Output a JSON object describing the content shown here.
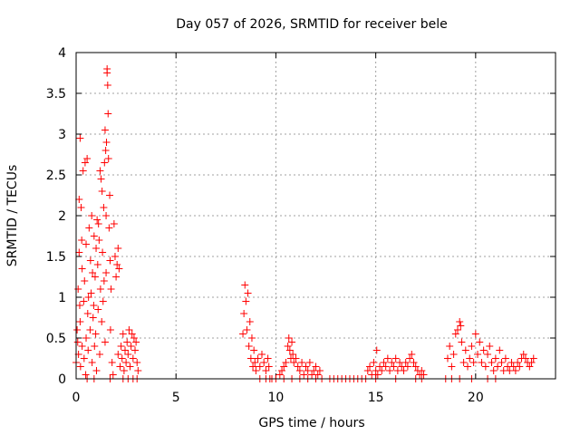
{
  "chart_data": {
    "type": "scatter",
    "title": "Day 057 of 2026, SRMTID for receiver bele",
    "xlabel": "GPS time / hours",
    "ylabel": "SRMTID / TECUs",
    "xlim": [
      0,
      24
    ],
    "ylim": [
      0,
      4
    ],
    "xticks": [
      0,
      5,
      10,
      15,
      20
    ],
    "xtick_labels": [
      "0",
      "5",
      "10",
      "15",
      "20"
    ],
    "yticks": [
      0,
      0.5,
      1,
      1.5,
      2,
      2.5,
      3,
      3.5,
      4
    ],
    "ytick_labels": [
      "0",
      "0.5",
      "1",
      "1.5",
      "2",
      "2.5",
      "3",
      "3.5",
      "4"
    ],
    "grid": true,
    "marker": "+",
    "color": "#ff0000",
    "series": [
      {
        "name": "bele",
        "points": [
          [
            0.0,
            0.2
          ],
          [
            0.05,
            0.6
          ],
          [
            0.08,
            0.45
          ],
          [
            0.1,
            1.1
          ],
          [
            0.12,
            0.3
          ],
          [
            0.15,
            2.2
          ],
          [
            0.15,
            1.55
          ],
          [
            0.18,
            0.9
          ],
          [
            0.2,
            0.7
          ],
          [
            0.2,
            2.95
          ],
          [
            0.22,
            0.15
          ],
          [
            0.25,
            2.1
          ],
          [
            0.28,
            1.7
          ],
          [
            0.3,
            1.35
          ],
          [
            0.3,
            0.4
          ],
          [
            0.35,
            2.55
          ],
          [
            0.38,
            0.95
          ],
          [
            0.4,
            0.25
          ],
          [
            0.42,
            1.2
          ],
          [
            0.45,
            2.65
          ],
          [
            0.48,
            0.05
          ],
          [
            0.5,
            1.65
          ],
          [
            0.5,
            0.5
          ],
          [
            0.55,
            2.7
          ],
          [
            0.58,
            0.8
          ],
          [
            0.6,
            0.35
          ],
          [
            0.62,
            1.0
          ],
          [
            0.65,
            1.85
          ],
          [
            0.7,
            0.6
          ],
          [
            0.72,
            1.45
          ],
          [
            0.75,
            1.05
          ],
          [
            0.78,
            2.0
          ],
          [
            0.8,
            0.2
          ],
          [
            0.82,
            1.3
          ],
          [
            0.85,
            0.75
          ],
          [
            0.88,
            0.9
          ],
          [
            0.9,
            1.75
          ],
          [
            0.92,
            0.4
          ],
          [
            0.95,
            1.25
          ],
          [
            0.98,
            0.55
          ],
          [
            1.0,
            1.6
          ],
          [
            1.02,
            0.1
          ],
          [
            1.05,
            1.95
          ],
          [
            1.08,
            1.4
          ],
          [
            1.1,
            0.85
          ],
          [
            1.12,
            1.9
          ],
          [
            1.15,
            1.7
          ],
          [
            1.18,
            0.3
          ],
          [
            1.2,
            2.55
          ],
          [
            1.22,
            1.1
          ],
          [
            1.25,
            2.45
          ],
          [
            1.28,
            0.7
          ],
          [
            1.3,
            2.3
          ],
          [
            1.32,
            1.55
          ],
          [
            1.35,
            0.95
          ],
          [
            1.38,
            2.1
          ],
          [
            1.4,
            1.2
          ],
          [
            1.42,
            2.65
          ],
          [
            1.45,
            3.05
          ],
          [
            1.45,
            0.45
          ],
          [
            1.48,
            2.8
          ],
          [
            1.5,
            2.0
          ],
          [
            1.5,
            1.3
          ],
          [
            1.52,
            2.9
          ],
          [
            1.55,
            3.8
          ],
          [
            1.55,
            3.75
          ],
          [
            1.58,
            3.6
          ],
          [
            1.6,
            3.25
          ],
          [
            1.62,
            2.7
          ],
          [
            1.65,
            1.85
          ],
          [
            1.68,
            2.25
          ],
          [
            1.7,
            1.45
          ],
          [
            1.72,
            0.6
          ],
          [
            1.75,
            1.1
          ],
          [
            1.8,
            0.2
          ],
          [
            1.85,
            0.05
          ],
          [
            1.9,
            1.9
          ],
          [
            1.95,
            1.5
          ],
          [
            2.0,
            1.25
          ],
          [
            2.05,
            1.4
          ],
          [
            2.1,
            1.6
          ],
          [
            2.15,
            1.35
          ],
          [
            2.1,
            0.3
          ],
          [
            2.2,
            0.15
          ],
          [
            2.25,
            0.4
          ],
          [
            2.3,
            0.25
          ],
          [
            2.35,
            0.55
          ],
          [
            2.4,
            0.1
          ],
          [
            2.45,
            0.35
          ],
          [
            2.5,
            0.2
          ],
          [
            2.55,
            0.45
          ],
          [
            2.6,
            0.3
          ],
          [
            2.65,
            0.6
          ],
          [
            2.7,
            0.15
          ],
          [
            2.75,
            0.4
          ],
          [
            2.8,
            0.55
          ],
          [
            2.85,
            0.25
          ],
          [
            2.9,
            0.5
          ],
          [
            2.95,
            0.35
          ],
          [
            3.0,
            0.45
          ],
          [
            3.05,
            0.2
          ],
          [
            3.1,
            0.1
          ],
          [
            2.35,
            0.0
          ],
          [
            2.6,
            0.0
          ],
          [
            2.85,
            0.0
          ],
          [
            3.05,
            0.0
          ],
          [
            0.55,
            0.0
          ],
          [
            0.9,
            0.0
          ],
          [
            1.7,
            0.0
          ],
          [
            8.35,
            0.55
          ],
          [
            8.4,
            0.8
          ],
          [
            8.45,
            1.15
          ],
          [
            8.5,
            0.95
          ],
          [
            8.55,
            0.6
          ],
          [
            8.6,
            1.05
          ],
          [
            8.65,
            0.4
          ],
          [
            8.7,
            0.7
          ],
          [
            8.75,
            0.25
          ],
          [
            8.8,
            0.5
          ],
          [
            8.85,
            0.15
          ],
          [
            8.9,
            0.35
          ],
          [
            8.95,
            0.2
          ],
          [
            9.0,
            0.1
          ],
          [
            9.1,
            0.25
          ],
          [
            9.2,
            0.15
          ],
          [
            9.3,
            0.3
          ],
          [
            9.4,
            0.2
          ],
          [
            9.5,
            0.1
          ],
          [
            9.6,
            0.25
          ],
          [
            9.65,
            0.15
          ],
          [
            9.2,
            0.0
          ],
          [
            9.5,
            0.0
          ],
          [
            9.7,
            0.0
          ],
          [
            9.8,
            0.0
          ],
          [
            10.0,
            0.0
          ],
          [
            10.2,
            0.05
          ],
          [
            10.3,
            0.1
          ],
          [
            10.4,
            0.15
          ],
          [
            10.5,
            0.2
          ],
          [
            10.6,
            0.4
          ],
          [
            10.65,
            0.5
          ],
          [
            10.7,
            0.35
          ],
          [
            10.75,
            0.25
          ],
          [
            10.8,
            0.45
          ],
          [
            10.85,
            0.3
          ],
          [
            10.9,
            0.2
          ],
          [
            11.0,
            0.25
          ],
          [
            11.1,
            0.15
          ],
          [
            11.2,
            0.1
          ],
          [
            11.3,
            0.2
          ],
          [
            11.4,
            0.05
          ],
          [
            11.5,
            0.15
          ],
          [
            11.6,
            0.1
          ],
          [
            11.7,
            0.2
          ],
          [
            11.8,
            0.05
          ],
          [
            11.9,
            0.1
          ],
          [
            12.0,
            0.15
          ],
          [
            12.1,
            0.05
          ],
          [
            12.2,
            0.1
          ],
          [
            12.3,
            0.0
          ],
          [
            10.4,
            0.0
          ],
          [
            10.8,
            0.0
          ],
          [
            11.2,
            0.0
          ],
          [
            11.6,
            0.0
          ],
          [
            12.0,
            0.0
          ],
          [
            12.7,
            0.0
          ],
          [
            12.9,
            0.0
          ],
          [
            13.1,
            0.0
          ],
          [
            13.3,
            0.0
          ],
          [
            13.5,
            0.0
          ],
          [
            13.7,
            0.0
          ],
          [
            13.9,
            0.0
          ],
          [
            14.1,
            0.0
          ],
          [
            14.3,
            0.0
          ],
          [
            14.5,
            0.0
          ],
          [
            14.6,
            0.1
          ],
          [
            14.7,
            0.15
          ],
          [
            14.8,
            0.05
          ],
          [
            14.9,
            0.2
          ],
          [
            15.0,
            0.1
          ],
          [
            15.05,
            0.35
          ],
          [
            15.1,
            0.05
          ],
          [
            15.2,
            0.15
          ],
          [
            15.3,
            0.1
          ],
          [
            15.4,
            0.2
          ],
          [
            15.5,
            0.15
          ],
          [
            15.6,
            0.25
          ],
          [
            15.7,
            0.1
          ],
          [
            15.8,
            0.2
          ],
          [
            15.9,
            0.15
          ],
          [
            16.0,
            0.25
          ],
          [
            16.1,
            0.1
          ],
          [
            16.2,
            0.2
          ],
          [
            16.3,
            0.15
          ],
          [
            16.4,
            0.1
          ],
          [
            16.5,
            0.2
          ],
          [
            16.6,
            0.15
          ],
          [
            16.7,
            0.25
          ],
          [
            16.8,
            0.3
          ],
          [
            16.9,
            0.2
          ],
          [
            17.0,
            0.15
          ],
          [
            17.1,
            0.1
          ],
          [
            17.2,
            0.05
          ],
          [
            17.3,
            0.1
          ],
          [
            17.4,
            0.05
          ],
          [
            15.0,
            0.0
          ],
          [
            16.0,
            0.0
          ],
          [
            17.0,
            0.0
          ],
          [
            17.3,
            0.0
          ],
          [
            18.5,
            0.0
          ],
          [
            18.6,
            0.25
          ],
          [
            18.7,
            0.4
          ],
          [
            18.8,
            0.15
          ],
          [
            18.9,
            0.3
          ],
          [
            19.0,
            0.55
          ],
          [
            19.1,
            0.6
          ],
          [
            19.2,
            0.7
          ],
          [
            19.25,
            0.65
          ],
          [
            19.3,
            0.45
          ],
          [
            19.4,
            0.2
          ],
          [
            19.5,
            0.35
          ],
          [
            19.6,
            0.15
          ],
          [
            19.7,
            0.25
          ],
          [
            19.8,
            0.4
          ],
          [
            19.9,
            0.2
          ],
          [
            20.0,
            0.55
          ],
          [
            20.1,
            0.3
          ],
          [
            20.2,
            0.45
          ],
          [
            20.3,
            0.2
          ],
          [
            20.4,
            0.35
          ],
          [
            20.5,
            0.15
          ],
          [
            20.6,
            0.3
          ],
          [
            20.7,
            0.4
          ],
          [
            20.8,
            0.2
          ],
          [
            20.9,
            0.1
          ],
          [
            21.0,
            0.25
          ],
          [
            21.1,
            0.15
          ],
          [
            21.2,
            0.35
          ],
          [
            21.3,
            0.2
          ],
          [
            21.4,
            0.1
          ],
          [
            21.5,
            0.25
          ],
          [
            21.6,
            0.15
          ],
          [
            21.7,
            0.1
          ],
          [
            21.8,
            0.2
          ],
          [
            21.9,
            0.15
          ],
          [
            22.0,
            0.1
          ],
          [
            22.1,
            0.2
          ],
          [
            22.2,
            0.15
          ],
          [
            22.3,
            0.25
          ],
          [
            22.4,
            0.3
          ],
          [
            22.5,
            0.25
          ],
          [
            22.6,
            0.2
          ],
          [
            22.7,
            0.15
          ],
          [
            22.8,
            0.2
          ],
          [
            22.9,
            0.25
          ],
          [
            18.8,
            0.0
          ],
          [
            19.2,
            0.0
          ],
          [
            19.8,
            0.0
          ],
          [
            20.6,
            0.0
          ],
          [
            21.0,
            0.0
          ]
        ]
      }
    ]
  }
}
